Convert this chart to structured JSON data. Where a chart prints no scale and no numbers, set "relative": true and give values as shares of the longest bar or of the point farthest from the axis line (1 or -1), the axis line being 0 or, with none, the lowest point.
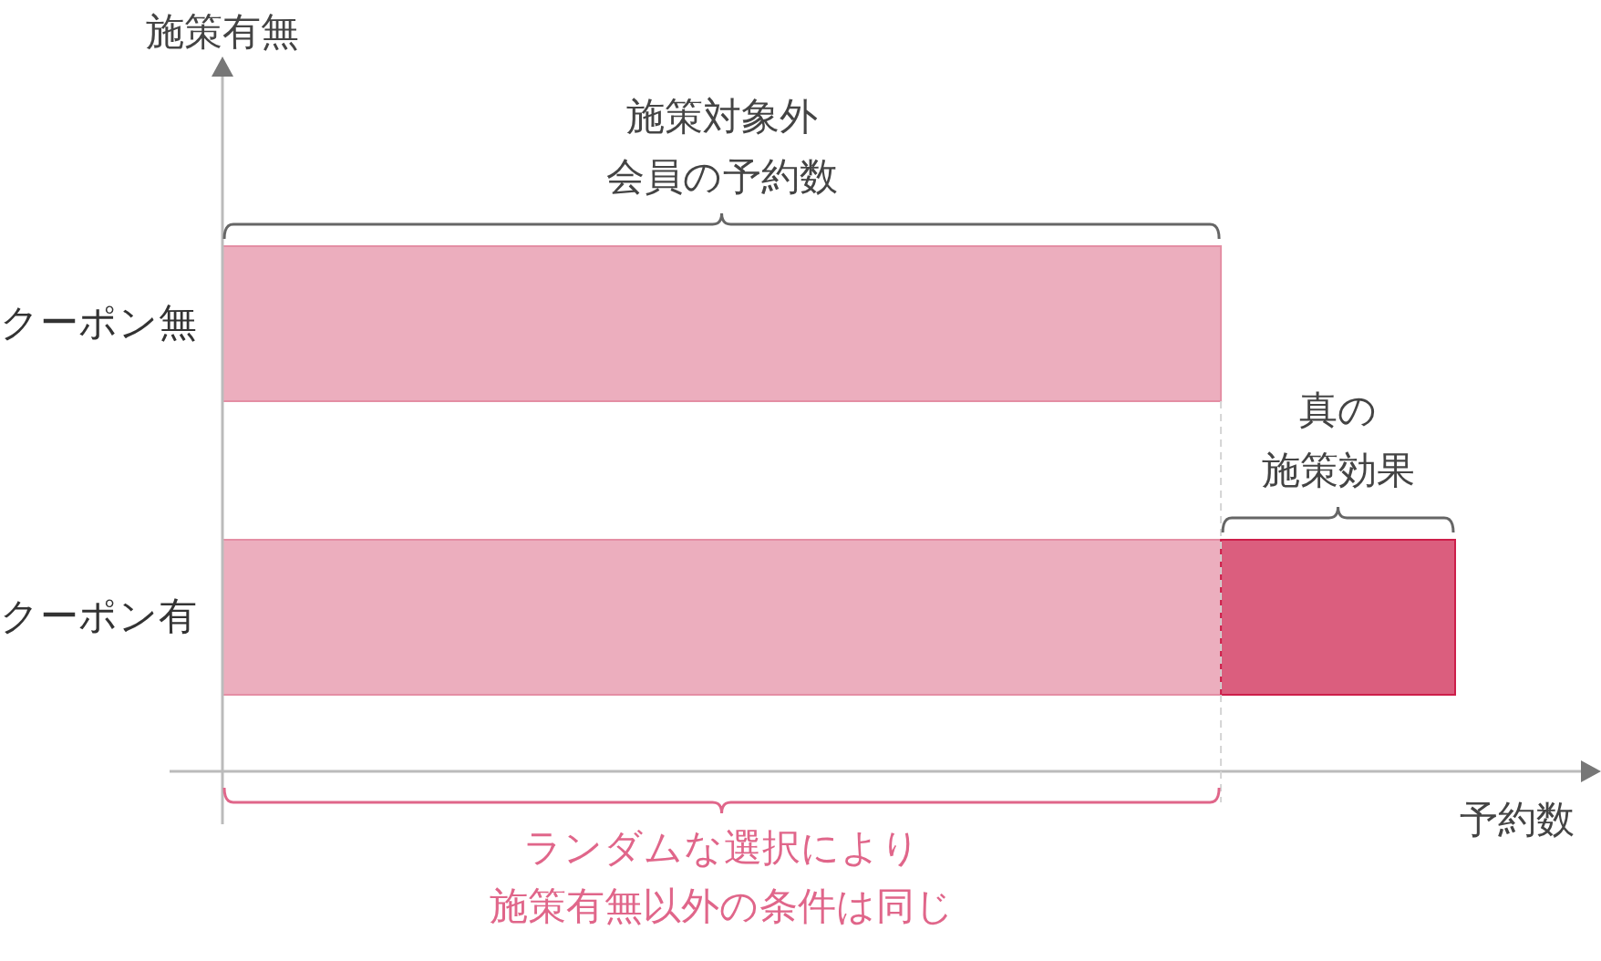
{
  "chart_data": {
    "type": "bar",
    "orientation": "horizontal",
    "stacked": true,
    "relative": true,
    "ylabel": "施策有無",
    "xlabel": "予約数",
    "categories": [
      "クーポン無",
      "クーポン有"
    ],
    "series": [
      {
        "color": "#ecaebe",
        "values": [
          0.81,
          0.81
        ]
      },
      {
        "color": "#db5e7e",
        "values": [
          null,
          0.19
        ]
      }
    ],
    "ref_lines": [
      {
        "axis": "x",
        "value": 0.81,
        "color": "#d4d4d4",
        "line_style": "dashed"
      }
    ],
    "annotations": [
      "施策対象外会員の予約数",
      "真の施策効果",
      "ランダムな選択により施策有無以外の条件は同じ"
    ]
  }
}
